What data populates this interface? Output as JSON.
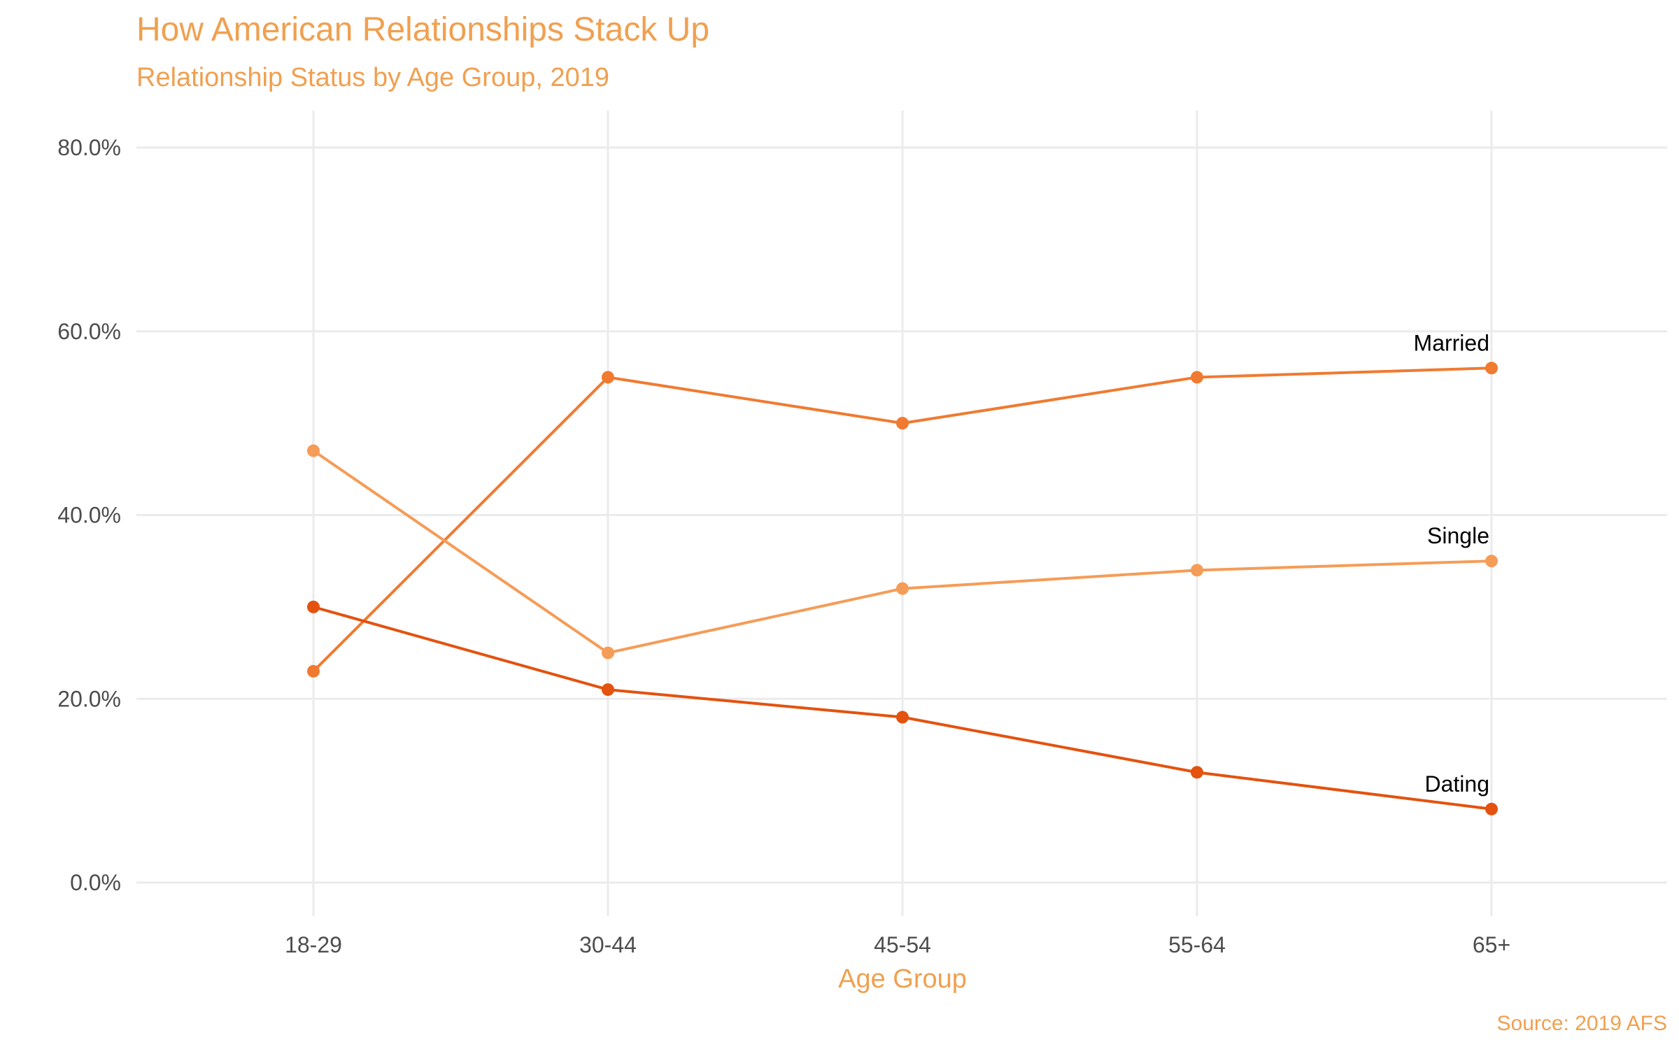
{
  "chart_data": {
    "type": "line",
    "title": "How American Relationships Stack Up",
    "subtitle": "Relationship Status by Age Group, 2019",
    "xlabel": "Age Group",
    "ylabel": "",
    "caption": "Source: 2019 AFS",
    "categories": [
      "18-29",
      "30-44",
      "45-54",
      "55-64",
      "65+"
    ],
    "ylim": [
      0,
      80
    ],
    "yticks": [
      0,
      20,
      40,
      60,
      80
    ],
    "ytick_labels": [
      "0.0%",
      "20.0%",
      "40.0%",
      "60.0%",
      "80.0%"
    ],
    "grid": true,
    "legend": "none (direct labels at line ends)",
    "series": [
      {
        "name": "Married",
        "values": [
          23,
          55,
          50,
          55,
          56
        ],
        "color": "#f07a30"
      },
      {
        "name": "Single",
        "values": [
          47,
          25,
          32,
          34,
          35
        ],
        "color": "#f59c57"
      },
      {
        "name": "Dating",
        "values": [
          30,
          21,
          18,
          12,
          8
        ],
        "color": "#e4520f"
      }
    ],
    "colors": {
      "title": "#f0a050",
      "tick_text": "#4d4d4d",
      "grid": "#ebebeb"
    }
  }
}
